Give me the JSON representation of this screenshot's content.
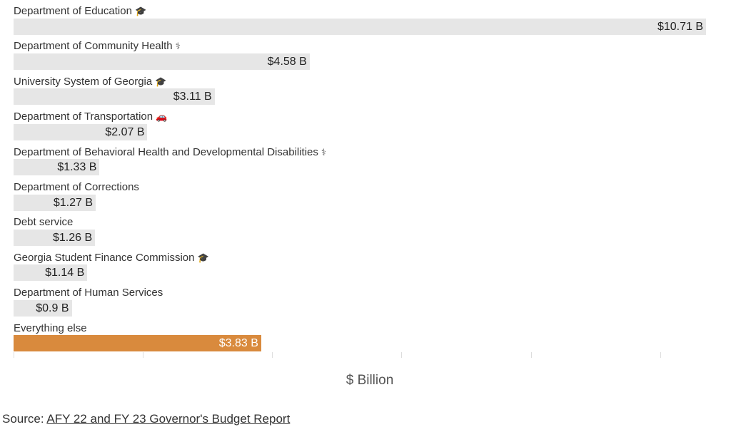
{
  "chart_data": {
    "type": "bar",
    "orientation": "horizontal",
    "categories": [
      "Department of Education",
      "Department of Community Health",
      "University System of Georgia",
      "Department of Transportation",
      "Department of Behavioral Health and Developmental Disabilities",
      "Department of Corrections",
      "Debt service",
      "Georgia Student Finance Commission",
      "Department of Human Services",
      "Everything else"
    ],
    "values": [
      10.71,
      4.58,
      3.11,
      2.07,
      1.33,
      1.27,
      1.26,
      1.14,
      0.9,
      3.83
    ],
    "value_labels": [
      "$10.71 B",
      "$4.58 B",
      "$3.11 B",
      "$2.07 B",
      "$1.33 B",
      "$1.27 B",
      "$1.26 B",
      "$1.14 B",
      "$0.9 B",
      "$3.83 B"
    ],
    "icons": [
      "graduation-cap-icon",
      "caduceus-icon",
      "graduation-cap-icon",
      "car-icon",
      "caduceus-icon",
      null,
      null,
      "graduation-cap-icon",
      null,
      null
    ],
    "highlight": [
      false,
      false,
      false,
      false,
      false,
      false,
      false,
      false,
      false,
      true
    ],
    "xlabel": "$ Billion",
    "xlim": [
      0,
      10.71
    ],
    "x_ticks": [
      0,
      2,
      4,
      6,
      8,
      10
    ],
    "x_tick_labels_shown": false,
    "grid": false,
    "colors": {
      "bar": "#e6e6e6",
      "highlight": "#d98a3d",
      "tick": "#dddddd"
    }
  },
  "source": {
    "prefix": "Source: ",
    "link_text": "AFY 22 and FY 23 Governor's Budget Report"
  }
}
